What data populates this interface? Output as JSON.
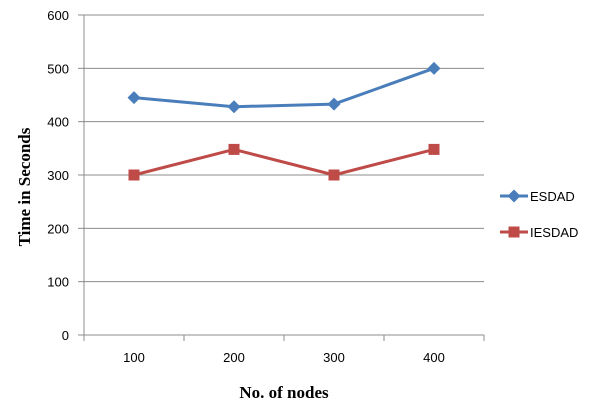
{
  "chart_data": {
    "type": "line",
    "title": "",
    "xlabel": "No. of nodes",
    "ylabel": "Time in Seconds",
    "categories": [
      "100",
      "200",
      "300",
      "400"
    ],
    "ylim": [
      0,
      600
    ],
    "yticks": [
      "0",
      "100",
      "200",
      "300",
      "400",
      "500",
      "600"
    ],
    "grid": true,
    "legend_position": "right",
    "series": [
      {
        "name": "ESDAD",
        "values": [
          445,
          428,
          433,
          500
        ],
        "color": "#4a7ebb",
        "marker": "diamond"
      },
      {
        "name": "IESDAD",
        "values": [
          300,
          348,
          300,
          348
        ],
        "color": "#be4b48",
        "marker": "square"
      }
    ]
  }
}
